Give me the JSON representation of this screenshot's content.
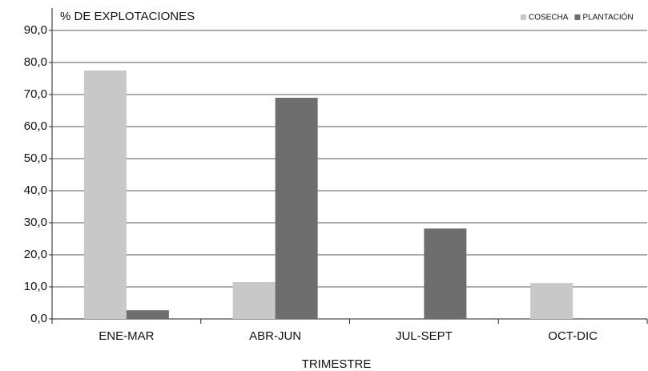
{
  "chart_data": {
    "type": "bar",
    "title": "% DE EXPLOTACIONES",
    "x_label": "TRIMESTRE",
    "categories": [
      "ENE-MAR",
      "ABR-JUN",
      "JUL-SEPT",
      "OCT-DIC"
    ],
    "series": [
      {
        "name": "COSECHA",
        "color": "#c8c8c8",
        "values": [
          77.5,
          11.5,
          0,
          11.2
        ]
      },
      {
        "name": "PLANTACIÓN",
        "color": "#6e6e6e",
        "values": [
          2.7,
          69.0,
          28.2,
          0
        ]
      }
    ],
    "ylim": [
      0,
      90
    ],
    "yticks": [
      {
        "value": 0,
        "label": "0,0"
      },
      {
        "value": 10,
        "label": "10,0"
      },
      {
        "value": 20,
        "label": "20,0"
      },
      {
        "value": 30,
        "label": "30,0"
      },
      {
        "value": 40,
        "label": "40,0"
      },
      {
        "value": 50,
        "label": "50,0"
      },
      {
        "value": 60,
        "label": "60,0"
      },
      {
        "value": 70,
        "label": "70,0"
      },
      {
        "value": 80,
        "label": "80,0"
      },
      {
        "value": 90,
        "label": "90,0"
      }
    ],
    "grid": true,
    "legend": "top-right"
  }
}
